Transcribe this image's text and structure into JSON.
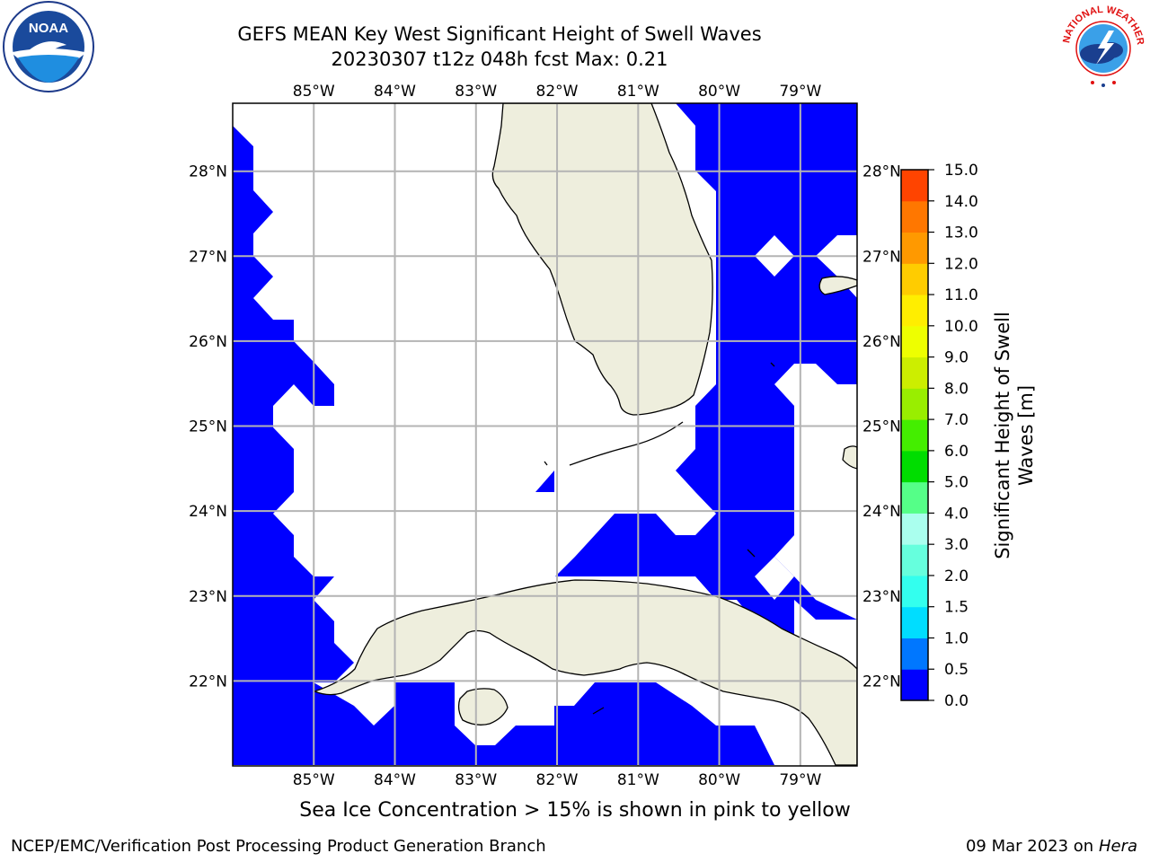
{
  "title": {
    "line1": "GEFS MEAN Key West Significant Height of Swell Waves",
    "line2": "20230307 t12z 048h fcst   Max: 0.21"
  },
  "logos": {
    "left": {
      "icon": "noaa-logo-icon",
      "text": "NOAA",
      "ring_text": "NATIONAL OCEANIC AND ATMOSPHERIC ADMINISTRATION · U.S. DEPARTMENT OF COMMERCE"
    },
    "right": {
      "icon": "nws-logo-icon",
      "ring_text": "NATIONAL WEATHER SERVICE"
    }
  },
  "map": {
    "lon_ticks": [
      "85°W",
      "84°W",
      "83°W",
      "82°W",
      "81°W",
      "80°W",
      "79°W"
    ],
    "lat_ticks": [
      "28°N",
      "27°N",
      "26°N",
      "25°N",
      "24°N",
      "23°N",
      "22°N"
    ],
    "lon_range": [
      -86.0,
      -78.3
    ],
    "lat_range": [
      21.0,
      28.8
    ],
    "colors": {
      "land": "#eeeedd",
      "ocean": "#ffffff",
      "swell_low": "#0000ff",
      "grid": "#b4b4b4"
    }
  },
  "colorbar": {
    "label_line1": "Significant Height of Swell",
    "label_line2": "Waves [m]",
    "ticks": [
      "0.0",
      "0.5",
      "1.0",
      "1.5",
      "2.0",
      "3.0",
      "4.0",
      "5.0",
      "6.0",
      "7.0",
      "8.0",
      "9.0",
      "10.0",
      "11.0",
      "12.0",
      "13.0",
      "14.0",
      "15.0"
    ],
    "colors": [
      "#0000ff",
      "#0077ff",
      "#00ddff",
      "#33ffee",
      "#66ffdd",
      "#aaffee",
      "#55ff88",
      "#00dd00",
      "#44ee00",
      "#99ee00",
      "#ccee00",
      "#eeff00",
      "#ffee00",
      "#ffcc00",
      "#ff9900",
      "#ff7700",
      "#ff4400",
      "#ff0000"
    ]
  },
  "ice_note": "Sea Ice Concentration > 15% is shown in pink to yellow",
  "footer": {
    "left": "NCEP/EMC/Verification Post Processing Product Generation Branch",
    "date": "09 Mar 2023 on",
    "host": "Hera"
  }
}
